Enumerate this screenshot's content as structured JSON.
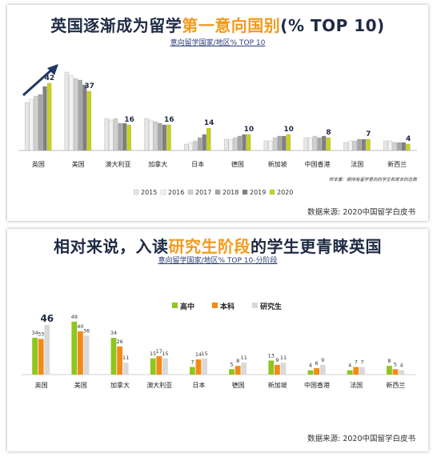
{
  "chart_data": [
    {
      "type": "bar",
      "title_main": "英国逐渐成为留学",
      "title_highlight": "第一意向国别",
      "title_suffix": "(% TOP 10)",
      "subtitle": "意向留学国家/地区% TOP 10",
      "note": "样本量：期待有留学意向的学生和家长的总数",
      "source": "数据来源: 2020中国留学白皮书",
      "categories": [
        "英国",
        "美国",
        "澳大利亚",
        "加拿大",
        "日本",
        "德国",
        "新加坡",
        "中国香港",
        "法国",
        "新西兰"
      ],
      "series": [
        {
          "name": "2015",
          "values": [
            30,
            49,
            20,
            20,
            4,
            7,
            6,
            8,
            5,
            6
          ]
        },
        {
          "name": "2016",
          "values": [
            32,
            47,
            19,
            19,
            5,
            7,
            6,
            8,
            6,
            6
          ]
        },
        {
          "name": "2017",
          "values": [
            34,
            45,
            20,
            18,
            6,
            8,
            8,
            9,
            6,
            5
          ]
        },
        {
          "name": "2018",
          "values": [
            35,
            44,
            17,
            17,
            8,
            9,
            9,
            8,
            7,
            5
          ]
        },
        {
          "name": "2019",
          "values": [
            40,
            41,
            17,
            16,
            10,
            10,
            9,
            9,
            7,
            5
          ]
        },
        {
          "name": "2020",
          "values": [
            42,
            37,
            16,
            16,
            14,
            10,
            10,
            8,
            7,
            4
          ]
        }
      ],
      "value_labels": [
        "42",
        "37",
        "16",
        "16",
        "14",
        "10",
        "10",
        "8",
        "7",
        "4"
      ],
      "legend_position": "bottom",
      "colors": [
        "#e6e6e6",
        "#f2f2f2",
        "#d0d0d0",
        "#a6a6a6",
        "#7f7f7f",
        "#c8d21a"
      ]
    },
    {
      "type": "bar",
      "title_main": "相对来说，入读",
      "title_highlight": "研究生阶段",
      "title_suffix": "的学生更青睐英国",
      "subtitle": "意向留学国家/地区% TOP 10-分阶段",
      "source": "数据来源: 2020中国留学白皮书",
      "categories": [
        "英国",
        "美国",
        "加拿大",
        "澳大利亚",
        "日本",
        "德国",
        "新加坡",
        "中国香港",
        "法国",
        "新西兰"
      ],
      "series": [
        {
          "name": "高中",
          "values": [
            34,
            49,
            34,
            15,
            7,
            5,
            13,
            4,
            4,
            8
          ]
        },
        {
          "name": "本科",
          "values": [
            33,
            40,
            26,
            17,
            14,
            8,
            9,
            6,
            7,
            5
          ]
        },
        {
          "name": "研究生",
          "values": [
            46,
            36,
            11,
            15,
            15,
            11,
            11,
            9,
            7,
            4
          ]
        }
      ],
      "legend_position": "top",
      "colors": [
        "#8ec61e",
        "#f28a1a",
        "#d9d9d9"
      ]
    }
  ]
}
